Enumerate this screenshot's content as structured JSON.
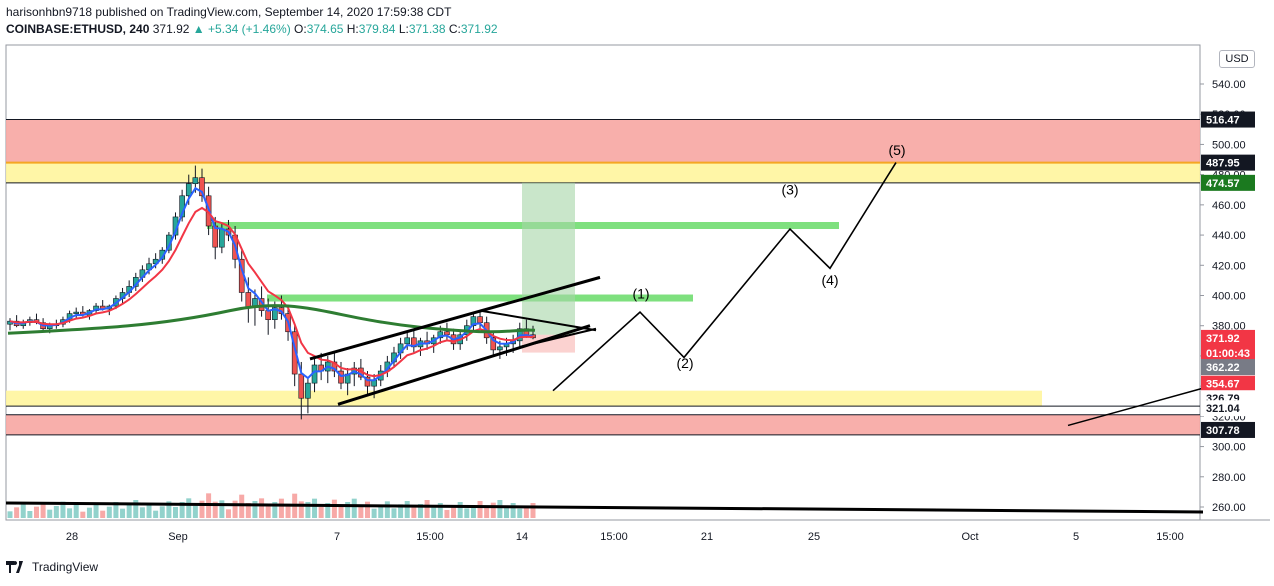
{
  "header": {
    "line1": "harisonhbn9718 published on TradingView.com, September 14, 2020 17:59:38 CDT",
    "symbol": "COINBASE:ETHUSD, 240",
    "price": "371.92",
    "change": "▲ +5.34 (+1.46%)",
    "o_label": "O:",
    "o": "374.65",
    "h_label": "H:",
    "h": "379.84",
    "l_label": "L:",
    "l": "371.38",
    "c_label": "C:",
    "c": "371.92"
  },
  "currency_button": "USD",
  "footer": {
    "brand": "TradingView"
  },
  "colors": {
    "up": "#26a69a",
    "down": "#ef5350",
    "ema_fast": "#2962ff",
    "ema_mid": "#f23645",
    "ema_slow": "#2e7d32",
    "supply_zone": "#f7a6a2",
    "yellow_zone": "#fff59d",
    "green_level": "#7ee07e"
  },
  "chart_data": {
    "type": "candlestick",
    "y_axis_ticks": [
      "540.00",
      "520.00",
      "500.00",
      "480.00",
      "460.00",
      "440.00",
      "420.00",
      "400.00",
      "380.00",
      "360.00",
      "340.00",
      "320.00",
      "300.00",
      "280.00",
      "260.00"
    ],
    "x_axis_ticks": [
      "28",
      "Sep",
      "7",
      "15:00",
      "14",
      "15:00",
      "21",
      "25",
      "Oct",
      "5",
      "15:00"
    ],
    "price_labels": [
      {
        "value": "516.47",
        "kind": "line"
      },
      {
        "value": "487.95",
        "kind": "line"
      },
      {
        "value": "474.57",
        "kind": "target"
      },
      {
        "value": "371.92",
        "kind": "last"
      },
      {
        "value": "01:00:43",
        "kind": "countdown"
      },
      {
        "value": "362.22",
        "kind": "stop"
      },
      {
        "value": "354.67",
        "kind": "sell"
      },
      {
        "value": "326.79",
        "kind": "line"
      },
      {
        "value": "321.04",
        "kind": "line"
      },
      {
        "value": "307.78",
        "kind": "line"
      }
    ],
    "zones": [
      {
        "name": "upper-supply",
        "from": 487.95,
        "to": 516.47
      },
      {
        "name": "upper-yellow",
        "from": 474.57,
        "to": 487.95
      },
      {
        "name": "lower-yellow",
        "from": 326.79,
        "to": 337
      },
      {
        "name": "lower-red",
        "from": 307.78,
        "to": 321.04
      }
    ],
    "green_levels": [
      446,
      398
    ],
    "wave_labels": [
      "(1)",
      "(2)",
      "(3)",
      "(4)",
      "(5)"
    ],
    "candles": [
      [
        381,
        385,
        377,
        383
      ],
      [
        383,
        387,
        379,
        380
      ],
      [
        380,
        384,
        378,
        382
      ],
      [
        382,
        386,
        380,
        384
      ],
      [
        384,
        388,
        381,
        382
      ],
      [
        382,
        385,
        376,
        378
      ],
      [
        378,
        382,
        375,
        380
      ],
      [
        380,
        384,
        378,
        381
      ],
      [
        381,
        386,
        379,
        384
      ],
      [
        384,
        390,
        382,
        388
      ],
      [
        388,
        392,
        385,
        389
      ],
      [
        389,
        393,
        386,
        387
      ],
      [
        387,
        391,
        384,
        390
      ],
      [
        390,
        395,
        388,
        393
      ],
      [
        393,
        397,
        390,
        391
      ],
      [
        391,
        394,
        387,
        393
      ],
      [
        393,
        400,
        391,
        398
      ],
      [
        398,
        405,
        395,
        402
      ],
      [
        402,
        410,
        399,
        406
      ],
      [
        406,
        415,
        403,
        412
      ],
      [
        412,
        420,
        409,
        417
      ],
      [
        417,
        425,
        414,
        421
      ],
      [
        421,
        428,
        418,
        424
      ],
      [
        424,
        432,
        421,
        430
      ],
      [
        430,
        442,
        428,
        440
      ],
      [
        440,
        455,
        437,
        452
      ],
      [
        452,
        470,
        449,
        466
      ],
      [
        466,
        480,
        460,
        474
      ],
      [
        474,
        486,
        468,
        478
      ],
      [
        478,
        484,
        462,
        466
      ],
      [
        466,
        472,
        440,
        446
      ],
      [
        446,
        452,
        424,
        432
      ],
      [
        432,
        448,
        428,
        444
      ],
      [
        444,
        450,
        436,
        440
      ],
      [
        440,
        446,
        418,
        424
      ],
      [
        424,
        430,
        396,
        402
      ],
      [
        402,
        412,
        382,
        392
      ],
      [
        392,
        404,
        380,
        398
      ],
      [
        398,
        406,
        386,
        390
      ],
      [
        390,
        398,
        374,
        384
      ],
      [
        384,
        396,
        378,
        392
      ],
      [
        392,
        400,
        384,
        388
      ],
      [
        388,
        392,
        370,
        376
      ],
      [
        376,
        380,
        340,
        348
      ],
      [
        348,
        356,
        318,
        332
      ],
      [
        332,
        346,
        322,
        342
      ],
      [
        342,
        358,
        336,
        354
      ],
      [
        354,
        362,
        344,
        350
      ],
      [
        350,
        360,
        342,
        356
      ],
      [
        356,
        362,
        346,
        350
      ],
      [
        350,
        356,
        338,
        342
      ],
      [
        342,
        352,
        334,
        348
      ],
      [
        348,
        356,
        340,
        352
      ],
      [
        352,
        358,
        344,
        346
      ],
      [
        346,
        350,
        334,
        340
      ],
      [
        340,
        348,
        332,
        344
      ],
      [
        344,
        354,
        340,
        350
      ],
      [
        350,
        360,
        346,
        356
      ],
      [
        356,
        366,
        352,
        362
      ],
      [
        362,
        372,
        358,
        368
      ],
      [
        368,
        376,
        364,
        372
      ],
      [
        372,
        378,
        362,
        366
      ],
      [
        366,
        372,
        360,
        370
      ],
      [
        370,
        376,
        364,
        368
      ],
      [
        368,
        374,
        362,
        372
      ],
      [
        372,
        380,
        368,
        376
      ],
      [
        376,
        382,
        370,
        374
      ],
      [
        374,
        378,
        364,
        368
      ],
      [
        368,
        376,
        364,
        374
      ],
      [
        374,
        384,
        370,
        380
      ],
      [
        380,
        388,
        376,
        386
      ],
      [
        386,
        390,
        378,
        382
      ],
      [
        382,
        386,
        368,
        372
      ],
      [
        372,
        376,
        360,
        364
      ],
      [
        364,
        370,
        358,
        366
      ],
      [
        366,
        372,
        360,
        368
      ],
      [
        368,
        374,
        362,
        370
      ],
      [
        370,
        382,
        366,
        378
      ],
      [
        378,
        384,
        372,
        374
      ],
      [
        374,
        380,
        371,
        372
      ]
    ]
  }
}
